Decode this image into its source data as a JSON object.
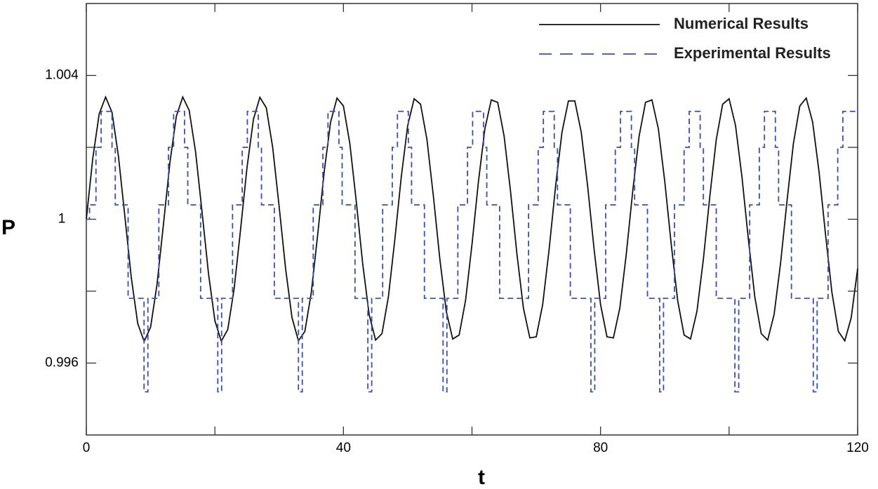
{
  "chart_data": {
    "type": "line",
    "xlabel": "t",
    "ylabel": "P",
    "xlim": [
      0,
      120
    ],
    "xticks": [
      0,
      40,
      80,
      120
    ],
    "xminorticks": [
      20,
      60,
      100
    ],
    "ylim": [
      0.994,
      1.006
    ],
    "yticks": [
      0.996,
      1,
      1.004
    ],
    "yminorticks": [
      0.998,
      1.002
    ],
    "grid": false,
    "legend": "upper right",
    "series": [
      {
        "name": "Numerical Results",
        "color": "#111111",
        "dash": "solid",
        "x": [
          0,
          1,
          2,
          3,
          4,
          5,
          6,
          7,
          8,
          9,
          10,
          11,
          12,
          13,
          14,
          15,
          16,
          17,
          18,
          19,
          20,
          21,
          22,
          23,
          24,
          25,
          26,
          27,
          28,
          29,
          30,
          31,
          32,
          33,
          34,
          35,
          36,
          37,
          38,
          39,
          40,
          41,
          42,
          43,
          44,
          45,
          46,
          47,
          48,
          49,
          50,
          51,
          52,
          53,
          54,
          55,
          56,
          57,
          58,
          59,
          60,
          61,
          62,
          63,
          64,
          65,
          66,
          67,
          68,
          69,
          70,
          71,
          72,
          73,
          74,
          75,
          76,
          77,
          78,
          79,
          80,
          81,
          82,
          83,
          84,
          85,
          86,
          87,
          88,
          89,
          90,
          91,
          92,
          93,
          94,
          95,
          96,
          97,
          98,
          99,
          100,
          101,
          102,
          103,
          104,
          105,
          106,
          107,
          108,
          109,
          110,
          111,
          112,
          113,
          114,
          115,
          116,
          117,
          118,
          119,
          120
        ],
        "values": [
          1.0,
          1.00169,
          1.00293,
          1.0034,
          1.00297,
          1.00175,
          1.00007,
          0.99837,
          0.9971,
          0.9966,
          0.997,
          0.99819,
          0.99986,
          1.00157,
          1.00286,
          1.0034,
          1.00303,
          1.00187,
          1.00021,
          0.9985,
          0.99718,
          0.99661,
          0.99693,
          0.99807,
          0.99972,
          1.00144,
          1.00278,
          1.00339,
          1.0031,
          1.00199,
          1.00035,
          0.99863,
          0.99726,
          0.99662,
          0.99688,
          0.99796,
          0.99958,
          1.00131,
          1.0027,
          1.00337,
          1.00315,
          1.0021,
          1.00049,
          0.99876,
          0.99735,
          0.99664,
          0.99682,
          0.99785,
          0.99944,
          1.00118,
          1.00261,
          1.00335,
          1.0032,
          1.00221,
          1.00063,
          0.99889,
          0.99744,
          0.99667,
          0.99678,
          0.99774,
          0.9993,
          1.00104,
          1.00251,
          1.00332,
          1.00325,
          1.00231,
          1.00077,
          0.99902,
          0.99753,
          0.9967,
          0.99673,
          0.99763,
          0.99916,
          1.00091,
          1.00242,
          1.00329,
          1.00329,
          1.00242,
          1.00091,
          0.99916,
          0.99763,
          0.99673,
          0.9967,
          0.99753,
          0.99902,
          1.00077,
          1.00231,
          1.00325,
          1.00332,
          1.00251,
          1.00104,
          0.9993,
          0.99774,
          0.99678,
          0.99667,
          0.99744,
          0.99889,
          1.00063,
          1.00221,
          1.0032,
          1.00335,
          1.00261,
          1.00118,
          0.99944,
          0.99784,
          0.99682,
          0.99664,
          0.99735,
          0.99876,
          1.00049,
          1.0021,
          1.00315,
          1.00337,
          1.0027,
          1.00131,
          0.99958,
          0.99796,
          0.99688,
          0.99662,
          0.99726,
          0.99863
        ]
      },
      {
        "name": "Experimental Results",
        "color": "#3a4fb0",
        "dash": "dashed",
        "x": [
          0,
          0.5,
          0.5,
          1.5,
          1.5,
          2.3,
          2.3,
          4,
          4,
          4.5,
          4.5,
          6.5,
          6.5,
          8.98,
          8.98,
          9.58,
          9.58,
          11.28,
          11.28,
          12.78,
          12.78,
          13.58,
          13.58,
          15.28,
          15.28,
          15.78,
          15.78,
          17.78,
          17.78,
          20.45,
          20.45,
          21.05,
          21.05,
          22.75,
          22.75,
          24.25,
          24.25,
          25.05,
          25.05,
          26.75,
          26.75,
          27.25,
          27.25,
          29.25,
          29.25,
          33.0,
          33.0,
          33.6,
          33.6,
          35.3,
          35.3,
          36.8,
          36.8,
          37.6,
          37.6,
          39.3,
          39.3,
          39.8,
          39.8,
          41.8,
          41.8,
          43.8,
          43.8,
          44.4,
          44.4,
          46.1,
          46.1,
          47.6,
          47.6,
          48.4,
          48.4,
          50.1,
          50.1,
          50.6,
          50.6,
          52.6,
          52.6,
          55.5,
          55.5,
          56.1,
          56.1,
          57.8,
          57.8,
          59.3,
          59.3,
          60.1,
          60.1,
          61.8,
          61.8,
          62.3,
          62.3,
          64.3,
          64.3,
          68.8,
          68.8,
          70.3,
          70.3,
          71.1,
          71.1,
          72.8,
          72.8,
          73.3,
          73.3,
          75.3,
          75.3,
          78.5,
          78.5,
          79.1,
          79.1,
          80.8,
          80.8,
          82.3,
          82.3,
          83.1,
          83.1,
          84.8,
          84.8,
          85.3,
          85.3,
          87.3,
          87.3,
          89.2,
          89.2,
          89.8,
          89.8,
          91.5,
          91.5,
          93.0,
          93.0,
          93.8,
          93.8,
          95.5,
          95.5,
          96.0,
          96.0,
          98.0,
          98.0,
          100.9,
          100.9,
          101.5,
          101.5,
          103.2,
          103.2,
          104.7,
          104.7,
          105.5,
          105.5,
          107.2,
          107.2,
          107.7,
          107.7,
          109.7,
          109.7,
          113.1,
          113.1,
          113.7,
          113.7,
          115.4,
          115.4,
          116.9,
          116.9,
          117.7,
          117.7,
          120
        ],
        "values": [
          1.0,
          1.0,
          1.0004,
          1.0004,
          1.002,
          1.002,
          1.003,
          1.003,
          1.002,
          1.002,
          1.0004,
          1.0004,
          0.9978,
          0.9978,
          0.9952,
          0.9952,
          0.9978,
          0.9978,
          1.0004,
          1.0004,
          1.002,
          1.002,
          1.003,
          1.003,
          1.002,
          1.002,
          1.0004,
          1.0004,
          0.9978,
          0.9978,
          0.9952,
          0.9952,
          0.9978,
          0.9978,
          1.0004,
          1.0004,
          1.002,
          1.002,
          1.003,
          1.003,
          1.002,
          1.002,
          1.0004,
          1.0004,
          0.9978,
          0.9978,
          0.9952,
          0.9952,
          0.9978,
          0.9978,
          1.0004,
          1.0004,
          1.002,
          1.002,
          1.003,
          1.003,
          1.002,
          1.002,
          1.0004,
          1.0004,
          0.9978,
          0.9978,
          0.9952,
          0.9952,
          0.9978,
          0.9978,
          1.0004,
          1.0004,
          1.002,
          1.002,
          1.003,
          1.003,
          1.002,
          1.002,
          1.0004,
          1.0004,
          0.9978,
          0.9978,
          0.9952,
          0.9952,
          0.9978,
          0.9978,
          1.0004,
          1.0004,
          1.002,
          1.002,
          1.003,
          1.003,
          1.002,
          1.002,
          1.0004,
          1.0004,
          0.9978,
          0.9978,
          1.0004,
          1.0004,
          1.002,
          1.002,
          1.003,
          1.003,
          1.002,
          1.002,
          1.0004,
          1.0004,
          0.9978,
          0.9978,
          0.9952,
          0.9952,
          0.9978,
          0.9978,
          1.0004,
          1.0004,
          1.002,
          1.002,
          1.003,
          1.003,
          1.002,
          1.002,
          1.0004,
          1.0004,
          0.9978,
          0.9978,
          0.9952,
          0.9952,
          0.9978,
          0.9978,
          1.0004,
          1.0004,
          1.002,
          1.002,
          1.003,
          1.003,
          1.002,
          1.002,
          1.0004,
          1.0004,
          0.9978,
          0.9978,
          0.9952,
          0.9952,
          0.9978,
          0.9978,
          1.0004,
          1.0004,
          1.002,
          1.002,
          1.003,
          1.003,
          1.002,
          1.002,
          1.0004,
          1.0004,
          0.9978,
          0.9978,
          0.9952,
          0.9952,
          0.9978,
          0.9978,
          1.0004,
          1.0004,
          1.002,
          1.002,
          1.003,
          1.003
        ]
      }
    ]
  }
}
